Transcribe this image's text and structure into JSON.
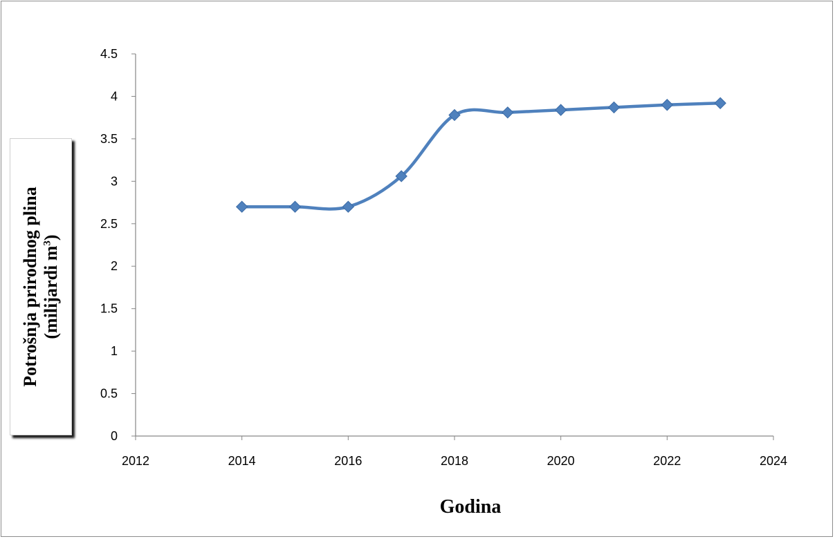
{
  "chart_data": {
    "type": "line",
    "title": "",
    "xlabel": "Godina",
    "ylabel_line1": "Potrošnja prirodnog plina",
    "ylabel_line2": "(milijardi m",
    "ylabel_sup": "3",
    "ylabel_line2_end": ")",
    "xlim": [
      2012,
      2024
    ],
    "ylim": [
      0,
      4.5
    ],
    "x_ticks": [
      2012,
      2014,
      2016,
      2018,
      2020,
      2022,
      2024
    ],
    "y_ticks": [
      0,
      0.5,
      1,
      1.5,
      2,
      2.5,
      3,
      3.5,
      4,
      4.5
    ],
    "x_tick_labels": [
      "2012",
      "2014",
      "2016",
      "2018",
      "2020",
      "2022",
      "2024"
    ],
    "y_tick_labels": [
      "0",
      "0.5",
      "1",
      "1.5",
      "2",
      "2.5",
      "3",
      "3.5",
      "4",
      "4.5"
    ],
    "grid": false,
    "legend": "none",
    "smoothed": true,
    "marker": "diamond",
    "series": [
      {
        "color": "#4f81bd",
        "x": [
          2014,
          2015,
          2016,
          2017,
          2018,
          2019,
          2020,
          2021,
          2022,
          2023
        ],
        "y": [
          2.7,
          2.7,
          2.7,
          3.06,
          3.78,
          3.81,
          3.84,
          3.87,
          3.9,
          3.92
        ]
      }
    ]
  }
}
